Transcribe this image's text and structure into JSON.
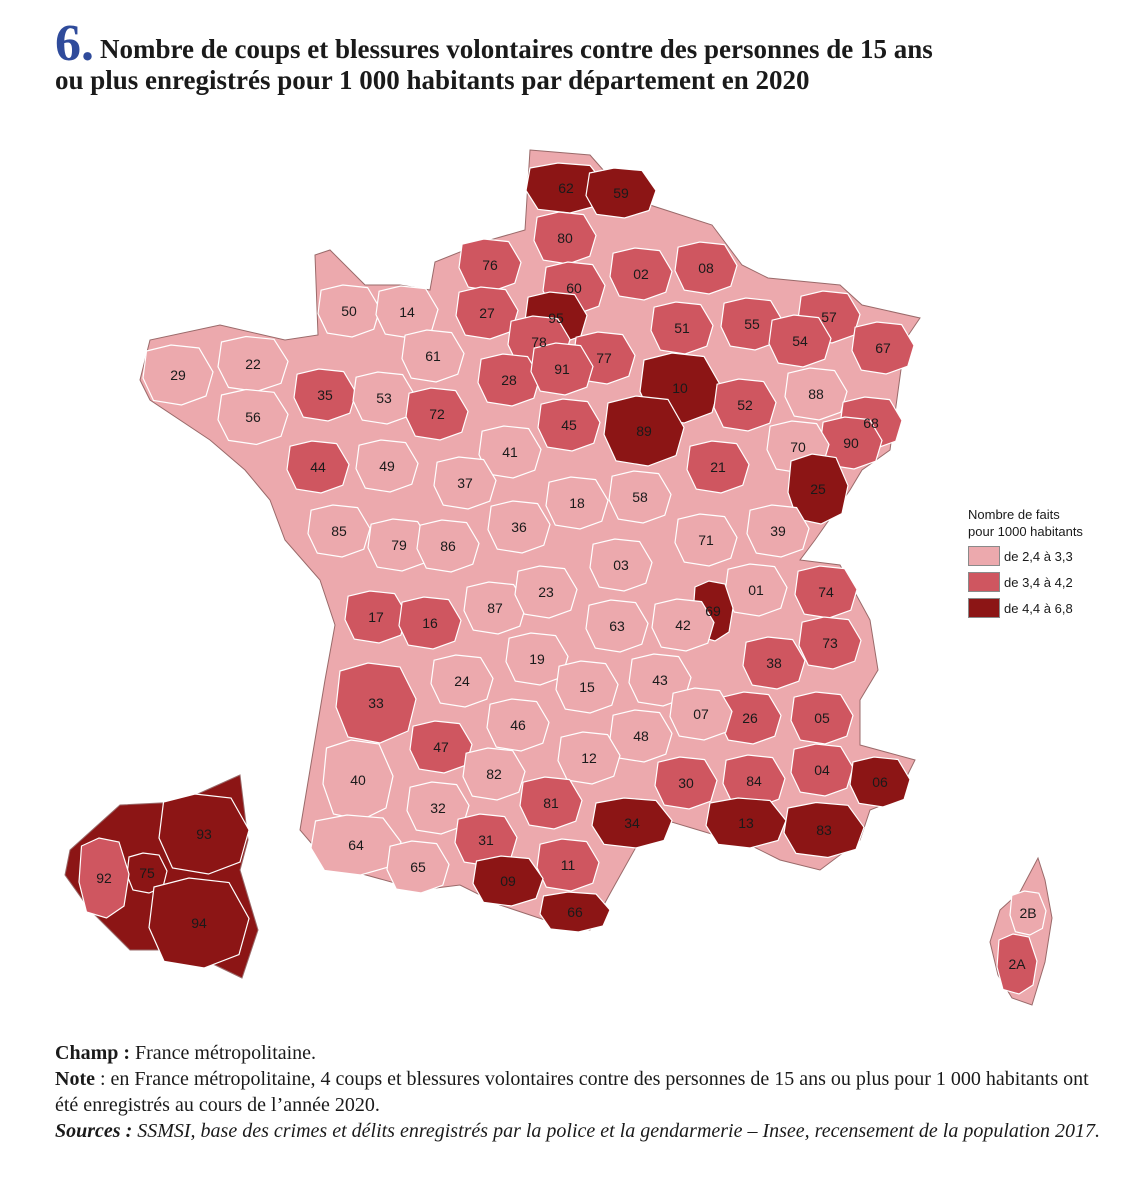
{
  "title": {
    "number": "6.",
    "line1": "Nombre de coups et blessures volontaires contre des personnes de 15 ans",
    "line2": "ou plus enregistrés pour 1 000 habitants par département en 2020"
  },
  "legend": {
    "title_line1": "Nombre de faits",
    "title_line2": "pour 1000 habitants",
    "classes": [
      {
        "label": "de  2,4 à  3,3",
        "color": "#eca9ad"
      },
      {
        "label": "de  3,4 à  4,2",
        "color": "#cf5660"
      },
      {
        "label": "de  4,4 à  6,8",
        "color": "#8c1515"
      }
    ]
  },
  "colors": {
    "border": "#ffffff",
    "outline": "#9a6a6a"
  },
  "departments": [
    {
      "code": "62",
      "cls": 3
    },
    {
      "code": "59",
      "cls": 3
    },
    {
      "code": "80",
      "cls": 2
    },
    {
      "code": "76",
      "cls": 2
    },
    {
      "code": "60",
      "cls": 2
    },
    {
      "code": "02",
      "cls": 2
    },
    {
      "code": "08",
      "cls": 2
    },
    {
      "code": "50",
      "cls": 1
    },
    {
      "code": "14",
      "cls": 1
    },
    {
      "code": "27",
      "cls": 2
    },
    {
      "code": "95",
      "cls": 3
    },
    {
      "code": "51",
      "cls": 2
    },
    {
      "code": "55",
      "cls": 2
    },
    {
      "code": "57",
      "cls": 2
    },
    {
      "code": "67",
      "cls": 2
    },
    {
      "code": "61",
      "cls": 1
    },
    {
      "code": "78",
      "cls": 2
    },
    {
      "code": "77",
      "cls": 2
    },
    {
      "code": "54",
      "cls": 2
    },
    {
      "code": "22",
      "cls": 1
    },
    {
      "code": "29",
      "cls": 1
    },
    {
      "code": "35",
      "cls": 2
    },
    {
      "code": "53",
      "cls": 1
    },
    {
      "code": "72",
      "cls": 2
    },
    {
      "code": "28",
      "cls": 2
    },
    {
      "code": "91",
      "cls": 2
    },
    {
      "code": "10",
      "cls": 3
    },
    {
      "code": "52",
      "cls": 2
    },
    {
      "code": "88",
      "cls": 1
    },
    {
      "code": "68",
      "cls": 2
    },
    {
      "code": "56",
      "cls": 1
    },
    {
      "code": "45",
      "cls": 2
    },
    {
      "code": "89",
      "cls": 3
    },
    {
      "code": "90",
      "cls": 2
    },
    {
      "code": "44",
      "cls": 2
    },
    {
      "code": "49",
      "cls": 1
    },
    {
      "code": "41",
      "cls": 1
    },
    {
      "code": "21",
      "cls": 2
    },
    {
      "code": "70",
      "cls": 1
    },
    {
      "code": "37",
      "cls": 1
    },
    {
      "code": "25",
      "cls": 3
    },
    {
      "code": "18",
      "cls": 1
    },
    {
      "code": "58",
      "cls": 1
    },
    {
      "code": "85",
      "cls": 1
    },
    {
      "code": "79",
      "cls": 1
    },
    {
      "code": "86",
      "cls": 1
    },
    {
      "code": "36",
      "cls": 1
    },
    {
      "code": "71",
      "cls": 1
    },
    {
      "code": "39",
      "cls": 1
    },
    {
      "code": "03",
      "cls": 1
    },
    {
      "code": "01",
      "cls": 1
    },
    {
      "code": "74",
      "cls": 2
    },
    {
      "code": "17",
      "cls": 2
    },
    {
      "code": "16",
      "cls": 2
    },
    {
      "code": "87",
      "cls": 1
    },
    {
      "code": "23",
      "cls": 1
    },
    {
      "code": "69",
      "cls": 3
    },
    {
      "code": "63",
      "cls": 1
    },
    {
      "code": "42",
      "cls": 1
    },
    {
      "code": "73",
      "cls": 2
    },
    {
      "code": "19",
      "cls": 1
    },
    {
      "code": "38",
      "cls": 2
    },
    {
      "code": "24",
      "cls": 1
    },
    {
      "code": "15",
      "cls": 1
    },
    {
      "code": "43",
      "cls": 1
    },
    {
      "code": "33",
      "cls": 2
    },
    {
      "code": "26",
      "cls": 2
    },
    {
      "code": "05",
      "cls": 2
    },
    {
      "code": "07",
      "cls": 1
    },
    {
      "code": "46",
      "cls": 1
    },
    {
      "code": "47",
      "cls": 2
    },
    {
      "code": "48",
      "cls": 1
    },
    {
      "code": "12",
      "cls": 1
    },
    {
      "code": "04",
      "cls": 2
    },
    {
      "code": "84",
      "cls": 2
    },
    {
      "code": "06",
      "cls": 3
    },
    {
      "code": "40",
      "cls": 1
    },
    {
      "code": "82",
      "cls": 1
    },
    {
      "code": "30",
      "cls": 2
    },
    {
      "code": "32",
      "cls": 1
    },
    {
      "code": "81",
      "cls": 2
    },
    {
      "code": "34",
      "cls": 3
    },
    {
      "code": "13",
      "cls": 3
    },
    {
      "code": "83",
      "cls": 3
    },
    {
      "code": "64",
      "cls": 1
    },
    {
      "code": "31",
      "cls": 2
    },
    {
      "code": "11",
      "cls": 2
    },
    {
      "code": "65",
      "cls": 1
    },
    {
      "code": "09",
      "cls": 3
    },
    {
      "code": "66",
      "cls": 3
    },
    {
      "code": "2B",
      "cls": 1
    },
    {
      "code": "2A",
      "cls": 2
    },
    {
      "code": "93",
      "cls": 3
    },
    {
      "code": "75",
      "cls": 3
    },
    {
      "code": "92",
      "cls": 2
    },
    {
      "code": "94",
      "cls": 3
    }
  ],
  "footer": {
    "champ_label": "Champ :",
    "champ_text": " France métropolitaine.",
    "note_label": "Note",
    "note_text": " : en France métropolitaine, 4 coups et blessures volontaires contre des personnes de 15 ans ou plus pour 1 000 habitants ont été enregistrés au cours de l’année 2020.",
    "sources_label": "Sources :",
    "sources_text": " SSMSI, base des crimes et délits enregistrés par la police et la gendarmerie – Insee, recensement de la population 2017."
  }
}
